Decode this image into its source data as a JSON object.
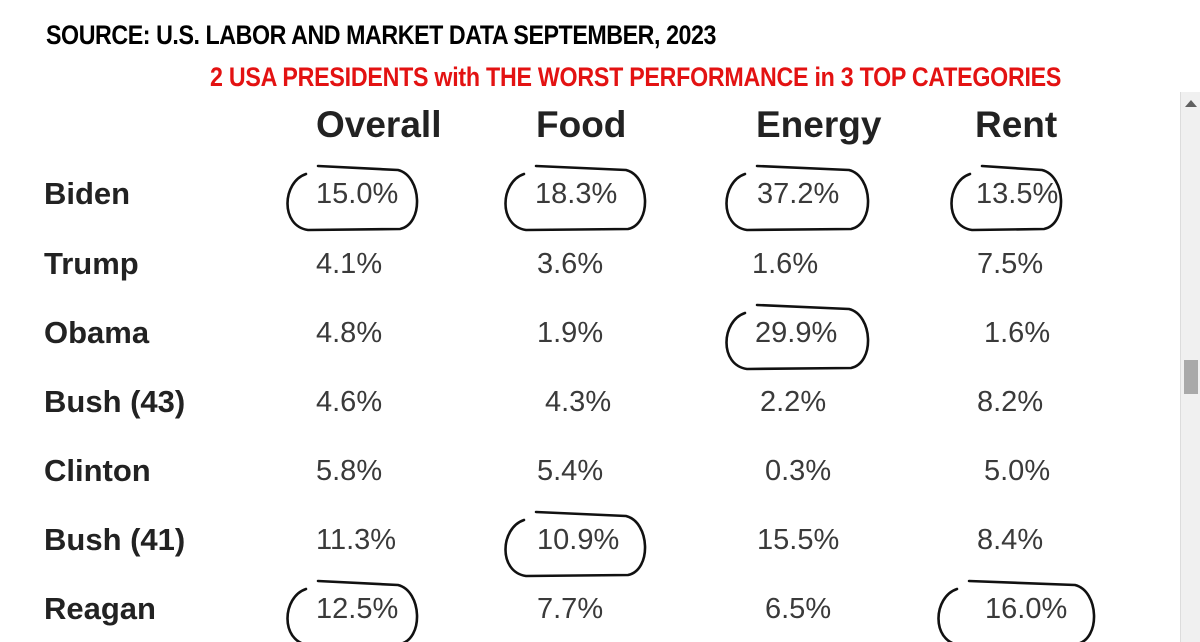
{
  "source": "SOURCE:  U.S. LABOR AND MARKET DATA SEPTEMBER, 2023",
  "headline": "2 USA PRESIDENTS with THE WORST PERFORMANCE in 3 TOP CATEGORIES",
  "chart_data": {
    "type": "table",
    "columns": [
      "Overall",
      "Food",
      "Energy",
      "Rent"
    ],
    "rows": [
      {
        "label": "Biden",
        "values": [
          "15.0%",
          "18.3%",
          "37.2%",
          "13.5%"
        ],
        "circled": [
          true,
          true,
          true,
          true
        ]
      },
      {
        "label": "Trump",
        "values": [
          "4.1%",
          "3.6%",
          "1.6%",
          "7.5%"
        ],
        "circled": [
          false,
          false,
          false,
          false
        ]
      },
      {
        "label": "Obama",
        "values": [
          "4.8%",
          "1.9%",
          "29.9%",
          "1.6%"
        ],
        "circled": [
          false,
          false,
          true,
          false
        ]
      },
      {
        "label": "Bush  (43)",
        "values": [
          "4.6%",
          "4.3%",
          "2.2%",
          "8.2%"
        ],
        "circled": [
          false,
          false,
          false,
          false
        ]
      },
      {
        "label": "Clinton",
        "values": [
          "5.8%",
          "5.4%",
          "0.3%",
          "5.0%"
        ],
        "circled": [
          false,
          false,
          false,
          false
        ]
      },
      {
        "label": "Bush (41)",
        "values": [
          "11.3%",
          "10.9%",
          "15.5%",
          "8.4%"
        ],
        "circled": [
          false,
          true,
          false,
          false
        ]
      },
      {
        "label": "Reagan",
        "values": [
          "12.5%",
          "7.7%",
          "6.5%",
          "16.0%"
        ],
        "circled": [
          true,
          false,
          false,
          true
        ]
      }
    ]
  }
}
